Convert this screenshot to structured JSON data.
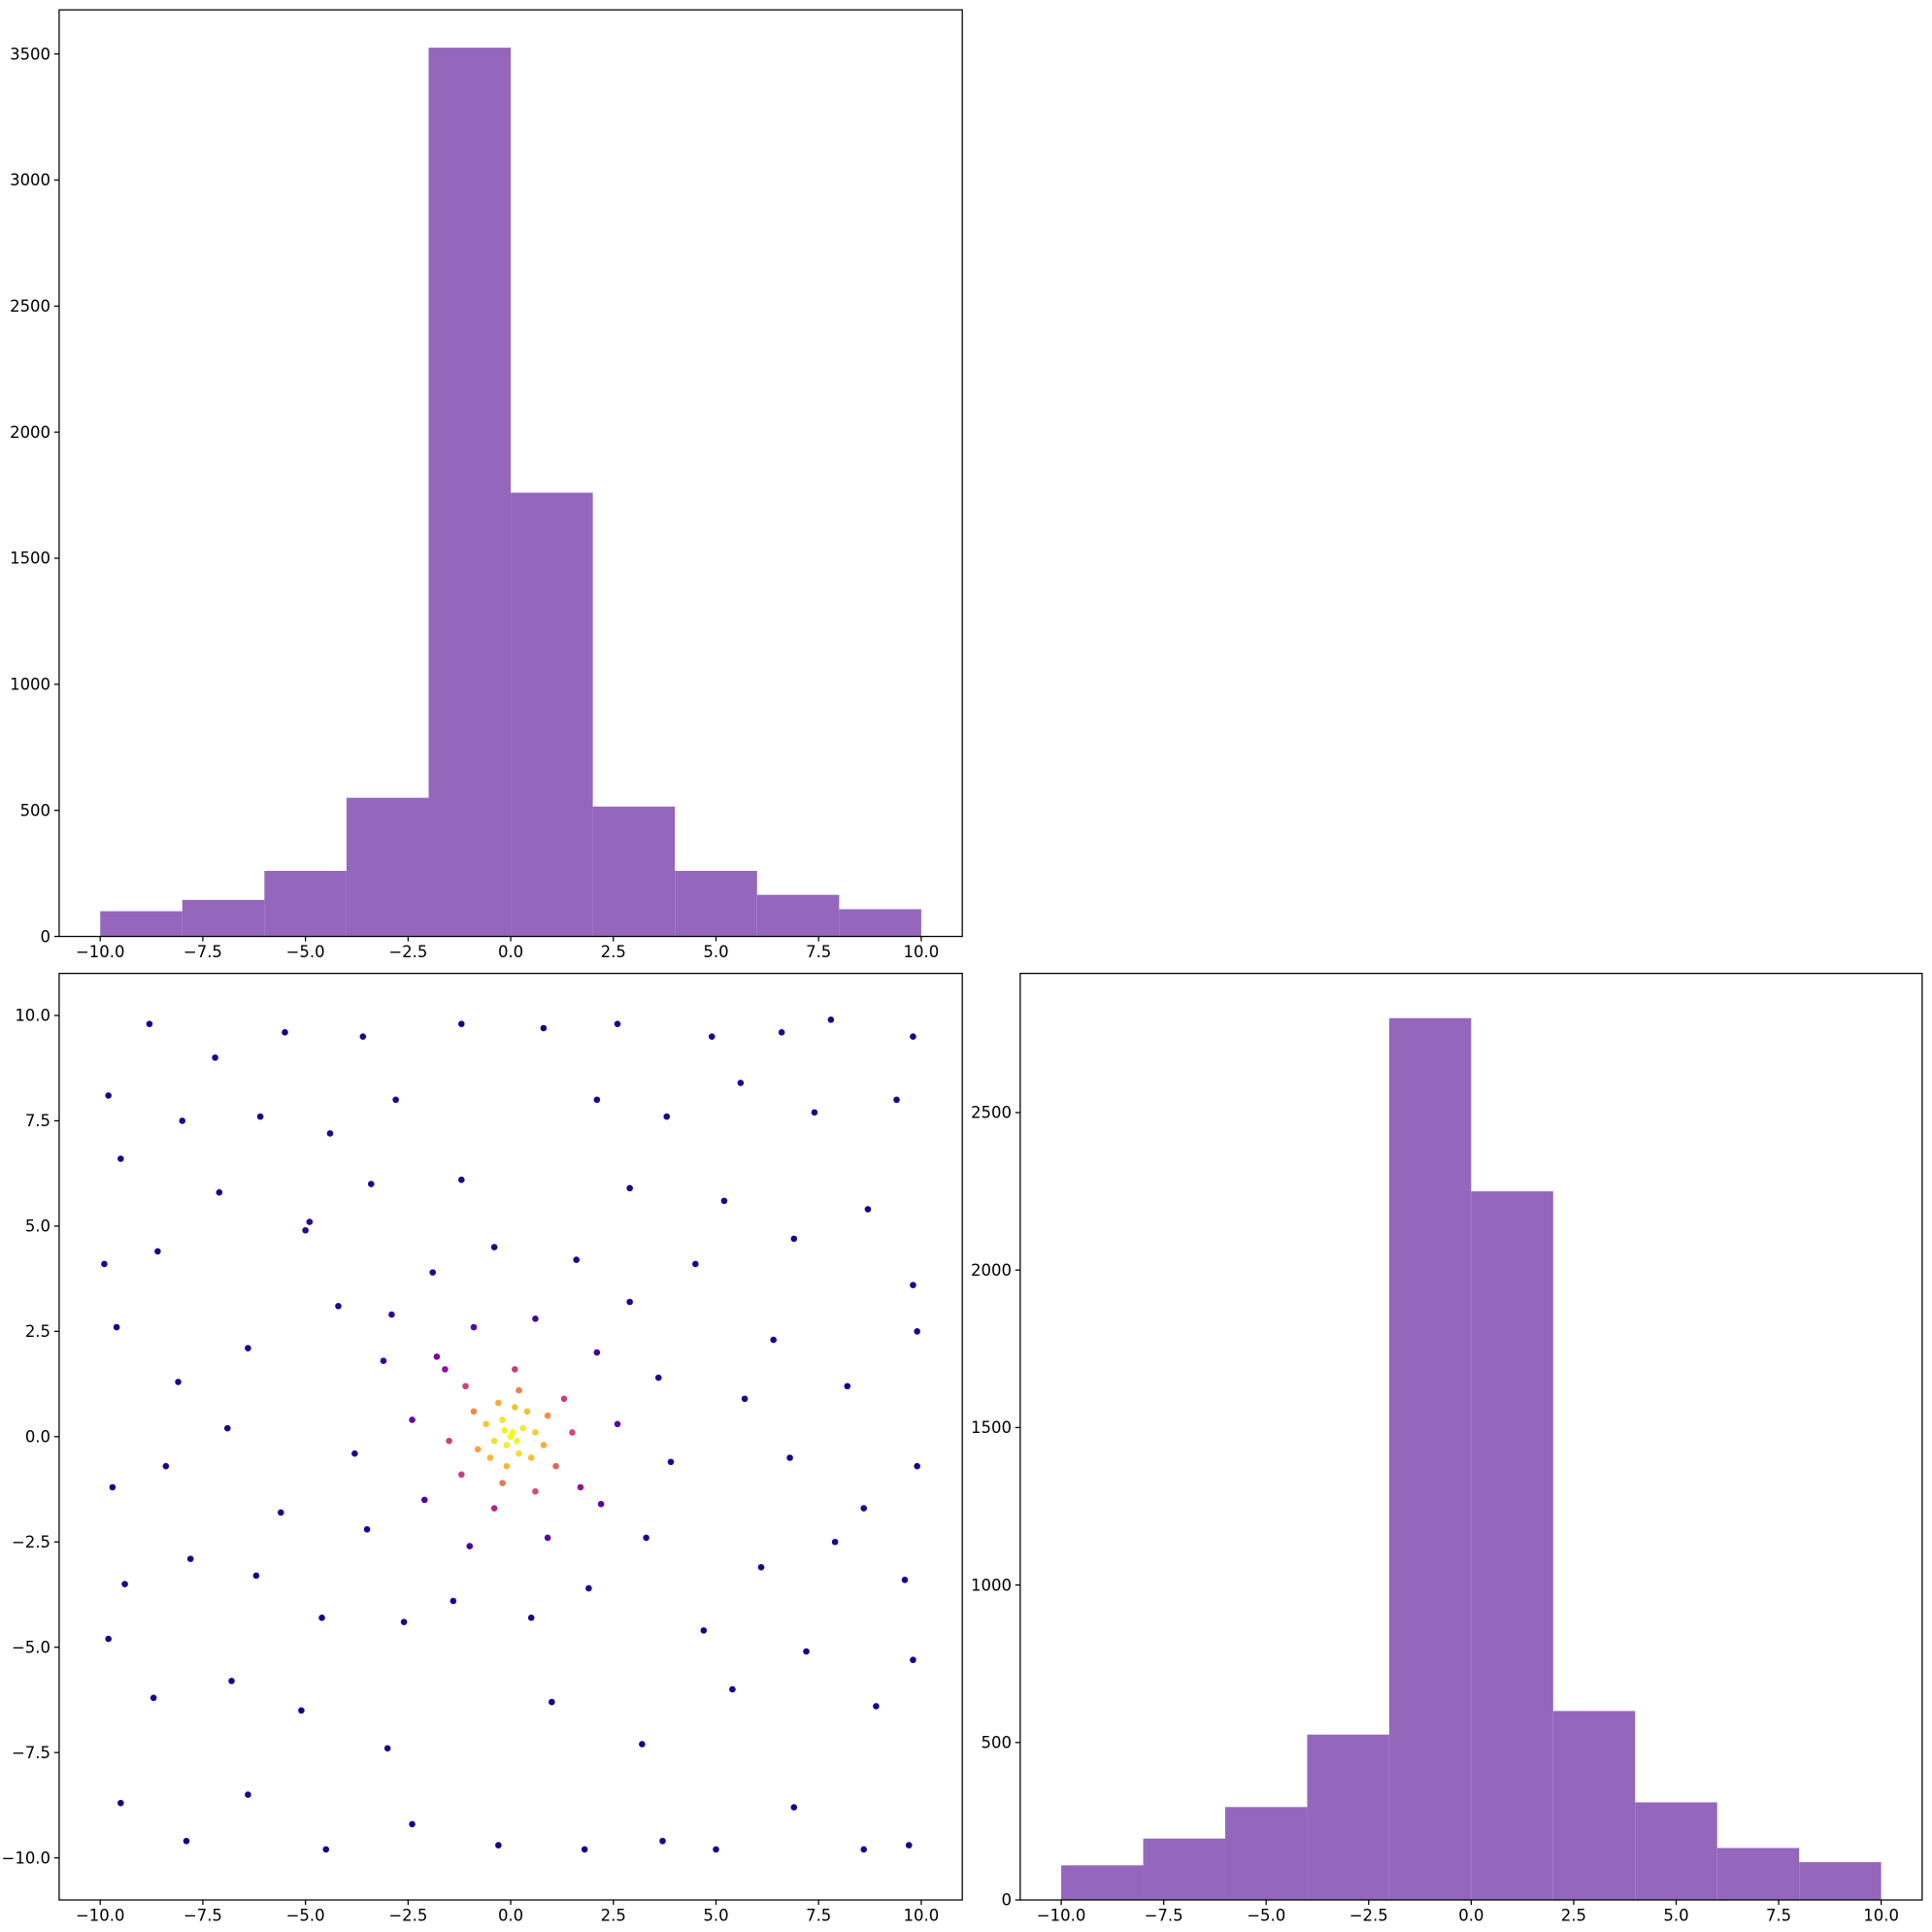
{
  "chart_data": [
    {
      "type": "histogram",
      "bins": [
        -10,
        -8,
        -6,
        -4,
        -2,
        0,
        2,
        4,
        6,
        8,
        10
      ],
      "values": [
        100,
        145,
        260,
        550,
        3525,
        1760,
        515,
        260,
        165,
        108
      ],
      "color": "#9467bd",
      "xlim": [
        -11,
        11
      ],
      "ylim": [
        0,
        3675
      ],
      "xticks": [
        {
          "value": -10,
          "label": "−10.0"
        },
        {
          "value": -7.5,
          "label": "−7.5"
        },
        {
          "value": -5,
          "label": "−5.0"
        },
        {
          "value": -2.5,
          "label": "−2.5"
        },
        {
          "value": 0,
          "label": "0.0"
        },
        {
          "value": 2.5,
          "label": "2.5"
        },
        {
          "value": 5,
          "label": "5.0"
        },
        {
          "value": 7.5,
          "label": "7.5"
        },
        {
          "value": 10,
          "label": "10.0"
        }
      ],
      "yticks": [
        0,
        500,
        1000,
        1500,
        2000,
        2500,
        3000,
        3500
      ]
    },
    {
      "type": "scatter",
      "cmap": "plasma",
      "x": [
        -9.8,
        -8.8,
        -7.2,
        -5.5,
        -3.6,
        -1.2,
        0.8,
        2.6,
        4.9,
        6.6,
        7.8,
        9.8,
        -9.5,
        -8.0,
        -6.1,
        -4.4,
        -2.8,
        2.1,
        3.8,
        5.6,
        7.4,
        9.4,
        -9.9,
        -8.6,
        -7.1,
        -5.0,
        5.2,
        6.9,
        8.7,
        9.8,
        -9.6,
        -8.1,
        -6.4,
        6.4,
        8.2,
        9.9,
        -9.7,
        -8.4,
        -6.9,
        6.8,
        8.6,
        9.9,
        -9.4,
        -7.8,
        -6.2,
        6.1,
        7.9,
        9.6,
        -9.8,
        -8.7,
        -6.8,
        -5.1,
        5.4,
        7.2,
        8.9,
        9.8,
        -9.5,
        -7.9,
        -6.4,
        -4.5,
        -2.4,
        -0.3,
        1.8,
        3.7,
        5.0,
        6.9,
        8.6,
        9.7,
        -3.0,
        3.2,
        -3.4,
        2.9,
        -4.2,
        -3.1,
        -3.8,
        -3.5,
        -2.6,
        -1.4,
        0.5,
        1.9,
        3.3,
        3.9,
        3.6,
        2.9,
        1.6,
        -0.4,
        -1.9,
        -2.9,
        -2.4,
        -2.1,
        -1.0,
        0.9,
        2.2,
        2.6,
        2.1,
        0.6,
        -0.9,
        -1.8,
        -5.6,
        5.7,
        -1.2,
        1.0,
        4.5,
        -4.6,
        4.7,
        -4.9,
        0,
        0.3,
        -0.2,
        -0.4,
        0.2,
        0.6,
        -0.6,
        0.1,
        -0.1,
        0.5,
        -0.5,
        0.4,
        -0.3,
        0.8,
        -0.8,
        0.9,
        -0.9,
        0.2,
        -0.2,
        1.1,
        -1.2,
        1.3,
        -1.1,
        0.6,
        1.5,
        -1.5,
        0.1,
        -0.4,
        1.7,
        -1.6,
        0.05,
        -0.1,
        0.15,
        -0.15
      ],
      "y": [
        8.1,
        9.8,
        9.0,
        9.6,
        9.5,
        9.8,
        9.7,
        9.8,
        9.5,
        9.6,
        9.9,
        9.5,
        6.6,
        7.5,
        7.6,
        7.2,
        8.0,
        8.0,
        7.6,
        8.4,
        7.7,
        8.0,
        4.1,
        4.4,
        5.8,
        4.9,
        5.6,
        4.7,
        5.4,
        3.6,
        2.6,
        1.3,
        2.1,
        2.3,
        1.2,
        2.5,
        -1.2,
        -0.7,
        0.2,
        -0.5,
        -1.7,
        -0.7,
        -3.5,
        -2.9,
        -3.3,
        -3.1,
        -2.5,
        -3.4,
        -4.8,
        -6.2,
        -5.8,
        -6.5,
        -6.0,
        -5.1,
        -6.4,
        -5.3,
        -8.7,
        -9.6,
        -8.5,
        -9.8,
        -9.2,
        -9.7,
        -9.8,
        -9.6,
        -9.8,
        -8.8,
        -9.8,
        -9.7,
        -7.4,
        -7.3,
        6.0,
        5.9,
        3.1,
        1.8,
        -0.4,
        -2.2,
        -4.4,
        -3.9,
        -4.3,
        -3.6,
        -2.4,
        -0.6,
        1.4,
        3.2,
        4.2,
        4.5,
        3.9,
        2.9,
        0.4,
        -1.5,
        -2.6,
        -2.4,
        -1.6,
        0.3,
        2.0,
        2.8,
        2.6,
        1.9,
        -1.8,
        0.9,
        6.1,
        -6.3,
        4.1,
        -4.3,
        -4.6,
        5.1,
        0,
        0.2,
        0.4,
        -0.1,
        -0.4,
        0.1,
        0.3,
        0.7,
        -0.7,
        -0.5,
        -0.5,
        0.6,
        0.8,
        -0.2,
        -0.3,
        0.5,
        0.6,
        1.1,
        -1.1,
        -0.7,
        -0.9,
        0.9,
        1.2,
        -1.3,
        0.1,
        -0.1,
        1.6,
        -1.7,
        -1.2,
        1.6,
        0.1,
        -0.2,
        -0.1,
        0.15
      ],
      "xlim": [
        -11,
        11
      ],
      "ylim": [
        -11,
        11
      ],
      "xticks": [
        {
          "value": -10,
          "label": "−10.0"
        },
        {
          "value": -7.5,
          "label": "−7.5"
        },
        {
          "value": -5,
          "label": "−5.0"
        },
        {
          "value": -2.5,
          "label": "−2.5"
        },
        {
          "value": 0,
          "label": "0.0"
        },
        {
          "value": 2.5,
          "label": "2.5"
        },
        {
          "value": 5,
          "label": "5.0"
        },
        {
          "value": 7.5,
          "label": "7.5"
        },
        {
          "value": 10,
          "label": "10.0"
        }
      ],
      "yticks": [
        {
          "value": -10,
          "label": "−10.0"
        },
        {
          "value": -7.5,
          "label": "−7.5"
        },
        {
          "value": -5,
          "label": "−5.0"
        },
        {
          "value": -2.5,
          "label": "−2.5"
        },
        {
          "value": 0,
          "label": "0.0"
        },
        {
          "value": 2.5,
          "label": "2.5"
        },
        {
          "value": 5,
          "label": "5.0"
        },
        {
          "value": 7.5,
          "label": "7.5"
        },
        {
          "value": 10,
          "label": "10.0"
        }
      ]
    },
    {
      "type": "histogram",
      "bins": [
        -10,
        -8,
        -6,
        -4,
        -2,
        0,
        2,
        4,
        6,
        8,
        10
      ],
      "values": [
        110,
        195,
        295,
        525,
        2800,
        2250,
        600,
        310,
        165,
        120
      ],
      "color": "#9467bd",
      "xlim": [
        -11,
        11
      ],
      "ylim": [
        0,
        2942
      ],
      "xticks": [
        {
          "value": -10,
          "label": "−10.0"
        },
        {
          "value": -7.5,
          "label": "−7.5"
        },
        {
          "value": -5,
          "label": "−5.0"
        },
        {
          "value": -2.5,
          "label": "−2.5"
        },
        {
          "value": 0,
          "label": "0.0"
        },
        {
          "value": 2.5,
          "label": "2.5"
        },
        {
          "value": 5,
          "label": "5.0"
        },
        {
          "value": 7.5,
          "label": "7.5"
        },
        {
          "value": 10,
          "label": "10.0"
        }
      ],
      "yticks": [
        0,
        500,
        1000,
        1500,
        2000,
        2500
      ]
    }
  ]
}
